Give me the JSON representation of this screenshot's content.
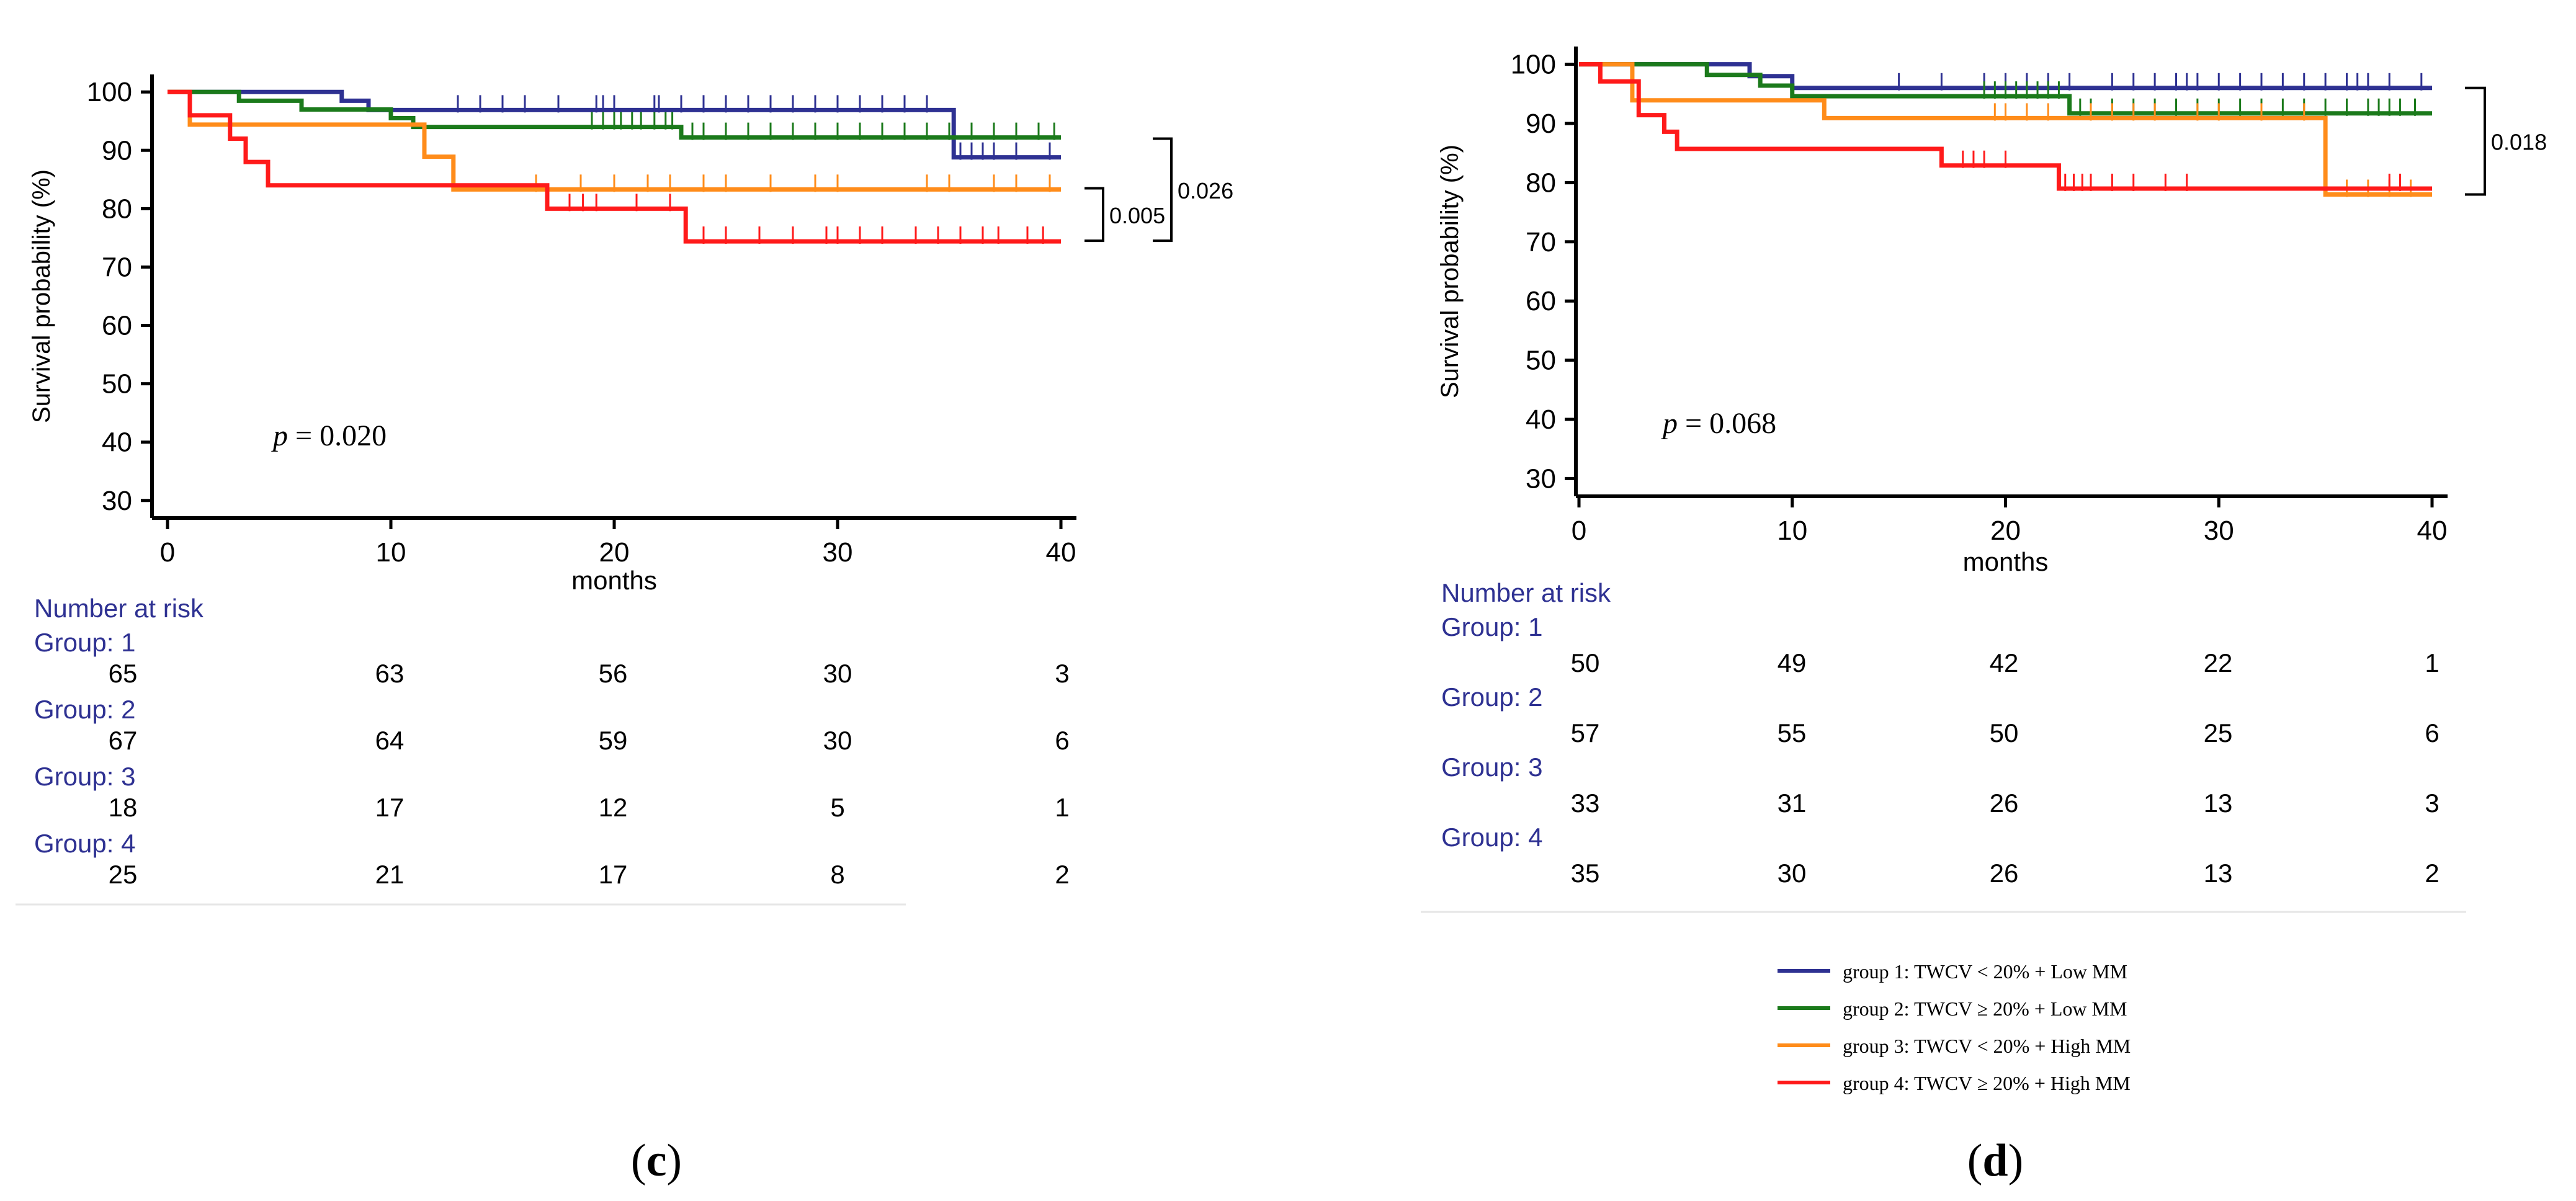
{
  "figure": {
    "legend": [
      {
        "key": "g1",
        "label": "group 1: TWCV < 20% + Low MM",
        "color": "#2E3192"
      },
      {
        "key": "g2",
        "label": "group 2: TWCV ≥ 20% + Low MM",
        "color": "#1B7A1B"
      },
      {
        "key": "g3",
        "label": "group 3: TWCV < 20% + High MM",
        "color": "#FF8C1A"
      },
      {
        "key": "g4",
        "label": "group 4: TWCV ≥ 20% + High MM",
        "color": "#FF1A1A"
      }
    ],
    "risk_header_color": "#2E3192",
    "bracket_color": "#000000"
  },
  "chart_data": [
    {
      "type": "line",
      "panel_label": "c",
      "xlabel": "months",
      "ylabel": "Survival probability (%)",
      "xlim": [
        0,
        40
      ],
      "ylim": [
        27,
        103
      ],
      "xticks": [
        0,
        10,
        20,
        30,
        40
      ],
      "yticks": [
        30,
        40,
        50,
        60,
        70,
        80,
        90,
        100
      ],
      "p_prefix": "p",
      "p_text": " = 0.020",
      "brackets": [
        {
          "from_y": 83.5,
          "to_y": 74.5,
          "label": "0.005",
          "level": 0
        },
        {
          "from_y": 92.0,
          "to_y": 74.5,
          "label": "0.026",
          "level": 1
        }
      ],
      "series": [
        {
          "name": "group 1",
          "color": "#2E3192",
          "steps": [
            [
              0,
              100
            ],
            [
              7.8,
              98.5
            ],
            [
              9,
              96.9
            ],
            [
              35.2,
              88.8
            ],
            [
              40,
              88.8
            ]
          ],
          "censors": [
            13,
            14,
            15,
            16,
            17.5,
            19.2,
            19.5,
            20,
            21.8,
            22,
            23,
            24,
            25,
            26,
            27,
            28,
            29,
            30,
            31,
            32,
            33,
            34,
            35.5,
            36,
            36.5,
            37,
            38,
            39.5
          ]
        },
        {
          "name": "group 2",
          "color": "#1B7A1B",
          "steps": [
            [
              0,
              100
            ],
            [
              3.2,
              98.5
            ],
            [
              6,
              97.0
            ],
            [
              10,
              95.5
            ],
            [
              11,
              94.0
            ],
            [
              23,
              92.2
            ],
            [
              40,
              92.2
            ]
          ],
          "censors": [
            19,
            19.5,
            20,
            20.3,
            20.8,
            21.2,
            21.8,
            22.3,
            22.6,
            23.5,
            24,
            25,
            26,
            27,
            28,
            29,
            30,
            31,
            32,
            33,
            34,
            35,
            36,
            37,
            38,
            39,
            39.7
          ]
        },
        {
          "name": "group 3",
          "color": "#FF8C1A",
          "steps": [
            [
              0,
              100
            ],
            [
              1,
              94.4
            ],
            [
              10.5,
              94.4
            ],
            [
              11.5,
              88.9
            ],
            [
              12.8,
              83.3
            ],
            [
              40,
              83.3
            ]
          ],
          "censors": [
            16.5,
            18.5,
            20,
            21.5,
            22.5,
            24,
            25,
            27,
            29,
            30,
            34,
            35,
            37,
            38,
            39.5
          ]
        },
        {
          "name": "group 4",
          "color": "#FF1A1A",
          "steps": [
            [
              0,
              100
            ],
            [
              1,
              96.0
            ],
            [
              2.8,
              92.0
            ],
            [
              3.5,
              88.0
            ],
            [
              4.5,
              84.0
            ],
            [
              17,
              80.0
            ],
            [
              23.2,
              74.4
            ],
            [
              40,
              74.4
            ]
          ],
          "censors": [
            18,
            18.6,
            19.2,
            21,
            22.5,
            24,
            25,
            26.5,
            28,
            29.5,
            30,
            31,
            32,
            33.5,
            34.5,
            35.5,
            36.5,
            37.2,
            38.5,
            39.2
          ]
        }
      ],
      "risk_table": {
        "header": "Number at risk",
        "rows": [
          {
            "label": "Group: 1",
            "values": [
              "65",
              "63",
              "56",
              "30",
              "3"
            ]
          },
          {
            "label": "Group: 2",
            "values": [
              "67",
              "64",
              "59",
              "30",
              "6"
            ]
          },
          {
            "label": "Group: 3",
            "values": [
              "18",
              "17",
              "12",
              "5",
              "1"
            ]
          },
          {
            "label": "Group: 4",
            "values": [
              "25",
              "21",
              "17",
              "8",
              "2"
            ]
          }
        ]
      }
    },
    {
      "type": "line",
      "panel_label": "d",
      "xlabel": "months",
      "ylabel": "Survival probability (%)",
      "xlim": [
        0,
        40
      ],
      "ylim": [
        27,
        103
      ],
      "xticks": [
        0,
        10,
        20,
        30,
        40
      ],
      "yticks": [
        30,
        40,
        50,
        60,
        70,
        80,
        90,
        100
      ],
      "p_prefix": "p",
      "p_text": " = 0.068",
      "brackets": [
        {
          "from_y": 96.0,
          "to_y": 78.0,
          "label": "0.018",
          "level": 0
        }
      ],
      "series": [
        {
          "name": "group 1",
          "color": "#2E3192",
          "steps": [
            [
              0,
              100
            ],
            [
              8,
              98.0
            ],
            [
              10,
              96.0
            ],
            [
              12.8,
              96.0
            ],
            [
              40,
              96.0
            ]
          ],
          "censors": [
            15,
            17,
            19,
            20,
            21,
            22,
            23,
            25,
            26,
            27,
            28,
            28.5,
            29,
            30,
            31,
            32,
            33,
            34,
            35,
            36,
            36.5,
            37,
            38,
            39.5
          ]
        },
        {
          "name": "group 2",
          "color": "#1B7A1B",
          "steps": [
            [
              0,
              100
            ],
            [
              6,
              98.2
            ],
            [
              8.5,
              96.4
            ],
            [
              10,
              94.6
            ],
            [
              23,
              91.7
            ],
            [
              40,
              91.7
            ]
          ],
          "censors": [
            19,
            19.5,
            20,
            20.5,
            21,
            21.5,
            22,
            22.5,
            23.5,
            24,
            25,
            26,
            27,
            28,
            29,
            30,
            31,
            32,
            33,
            34,
            35,
            36,
            37,
            37.5,
            38,
            38.5,
            39.2
          ]
        },
        {
          "name": "group 3",
          "color": "#FF8C1A",
          "steps": [
            [
              0,
              100
            ],
            [
              2.5,
              93.9
            ],
            [
              11.5,
              90.9
            ],
            [
              35,
              78.0
            ],
            [
              40,
              78.0
            ]
          ],
          "censors": [
            19.5,
            20,
            21,
            22,
            24,
            25,
            26,
            27,
            29,
            30,
            32,
            34,
            36,
            37,
            38,
            39
          ]
        },
        {
          "name": "group 4",
          "color": "#FF1A1A",
          "steps": [
            [
              0,
              100
            ],
            [
              1,
              97.1
            ],
            [
              2.8,
              91.4
            ],
            [
              4,
              88.6
            ],
            [
              4.6,
              85.7
            ],
            [
              17,
              82.9
            ],
            [
              22.5,
              79.0
            ],
            [
              40,
              79.0
            ]
          ],
          "censors": [
            18,
            18.5,
            19,
            20,
            22.8,
            23.2,
            23.6,
            24,
            25,
            26,
            27.5,
            28.5,
            38,
            38.5
          ]
        }
      ],
      "risk_table": {
        "header": "Number at risk",
        "rows": [
          {
            "label": "Group: 1",
            "values": [
              "50",
              "49",
              "42",
              "22",
              "1"
            ]
          },
          {
            "label": "Group: 2",
            "values": [
              "57",
              "55",
              "50",
              "25",
              "6"
            ]
          },
          {
            "label": "Group: 3",
            "values": [
              "33",
              "31",
              "26",
              "13",
              "3"
            ]
          },
          {
            "label": "Group: 4",
            "values": [
              "35",
              "30",
              "26",
              "13",
              "2"
            ]
          }
        ]
      }
    }
  ]
}
